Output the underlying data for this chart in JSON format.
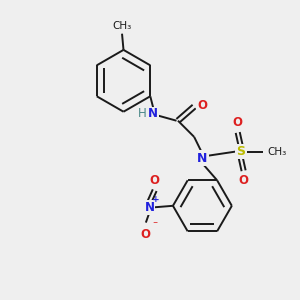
{
  "background_color": "#efefef",
  "bond_color": "#1a1a1a",
  "atom_colors": {
    "N": "#2020dd",
    "O": "#dd2020",
    "S": "#bbbb00",
    "H": "#4a8888",
    "C": "#1a1a1a"
  },
  "figsize": [
    3.0,
    3.0
  ],
  "dpi": 100,
  "xlim": [
    0,
    10
  ],
  "ylim": [
    0,
    10
  ]
}
